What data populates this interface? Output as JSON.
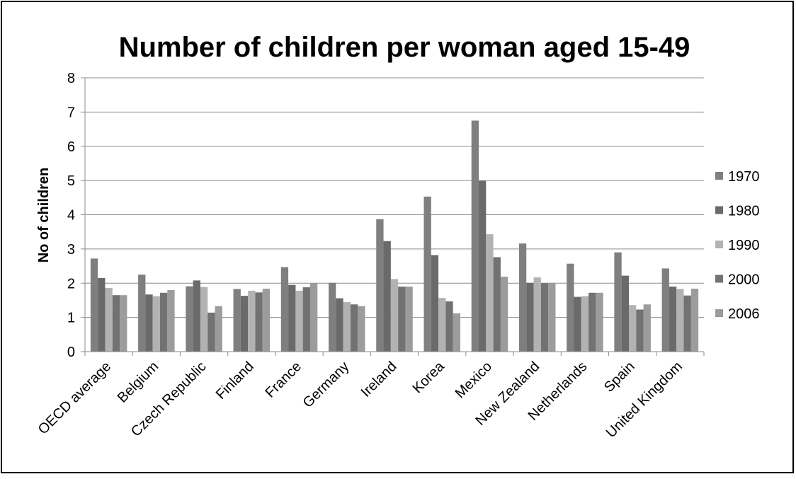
{
  "chart_data": {
    "type": "bar",
    "title": "Number of children per woman aged 15-49",
    "xlabel": "",
    "ylabel": "No of children",
    "ylim": [
      0,
      8
    ],
    "yticks": [
      "0",
      "1",
      "2",
      "3",
      "4",
      "5",
      "6",
      "7",
      "8"
    ],
    "grid": true,
    "legend_position": "right",
    "categories": [
      "OECD average",
      "Belgium",
      "Czech Republic",
      "Finland",
      "France",
      "Germany",
      "Ireland",
      "Korea",
      "Mexico",
      "New Zealand",
      "Netherlands",
      "Spain",
      "United Kingdom"
    ],
    "series": [
      {
        "name": "1970",
        "color": "#7f7f7f",
        "values": [
          2.72,
          2.25,
          1.91,
          1.83,
          2.47,
          2.01,
          3.87,
          4.53,
          6.75,
          3.16,
          2.57,
          2.9,
          2.43
        ]
      },
      {
        "name": "1980",
        "color": "#6a6a6a",
        "values": [
          2.15,
          1.67,
          2.08,
          1.63,
          1.95,
          1.56,
          3.23,
          2.82,
          4.99,
          2.01,
          1.6,
          2.22,
          1.9
        ]
      },
      {
        "name": "1990",
        "color": "#b2b2b2",
        "values": [
          1.86,
          1.62,
          1.89,
          1.78,
          1.78,
          1.45,
          2.12,
          1.57,
          3.43,
          2.17,
          1.62,
          1.36,
          1.83
        ]
      },
      {
        "name": "2000",
        "color": "#727272",
        "values": [
          1.65,
          1.72,
          1.14,
          1.73,
          1.88,
          1.38,
          1.9,
          1.47,
          2.76,
          2.0,
          1.72,
          1.23,
          1.64
        ]
      },
      {
        "name": "2006",
        "color": "#9c9c9c",
        "values": [
          1.65,
          1.8,
          1.33,
          1.84,
          2.0,
          1.33,
          1.9,
          1.12,
          2.19,
          2.01,
          1.72,
          1.38,
          1.84
        ]
      }
    ]
  }
}
